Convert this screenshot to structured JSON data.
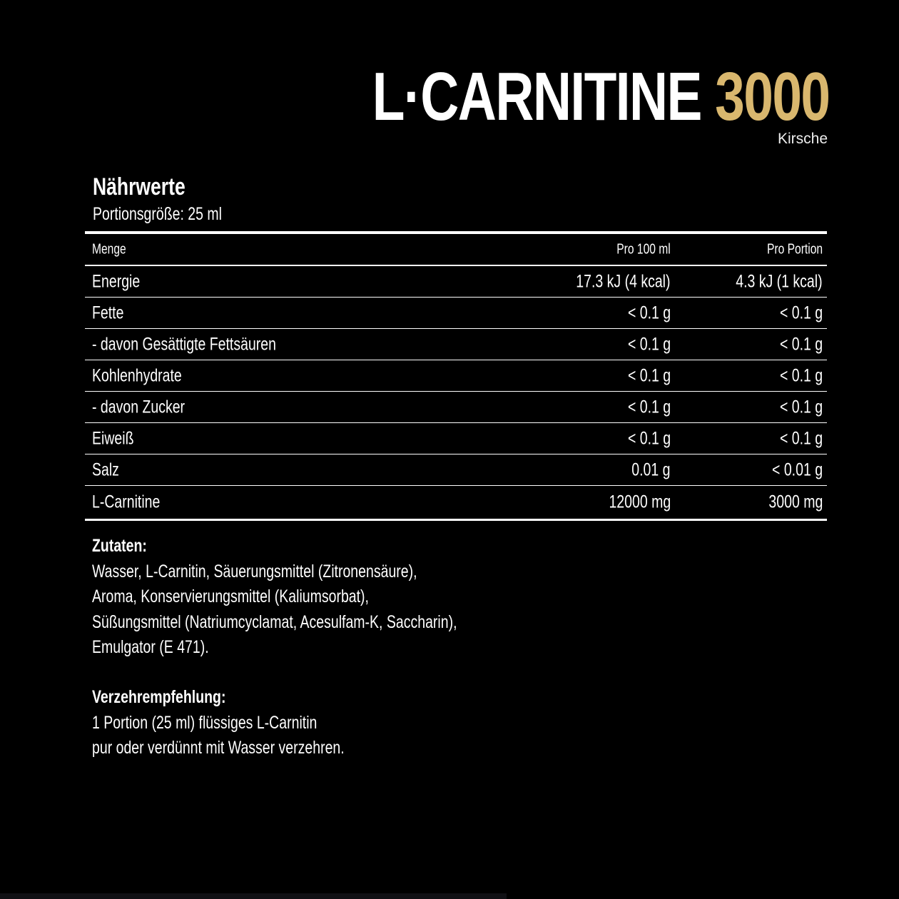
{
  "header": {
    "product": "L·CARNITINE",
    "strength": "3000",
    "flavor": "Kirsche",
    "accent_color": "#d9b76e"
  },
  "nutrition": {
    "title": "Nährwerte",
    "serving": "Portionsgröße: 25 ml",
    "columns": [
      "Menge",
      "Pro 100 ml",
      "Pro Portion"
    ],
    "rows": [
      [
        "Energie",
        "17.3 kJ (4 kcal)",
        "4.3 kJ (1 kcal)"
      ],
      [
        "Fette",
        "< 0.1 g",
        "< 0.1 g"
      ],
      [
        "- davon Gesättigte Fettsäuren",
        "< 0.1 g",
        "< 0.1 g"
      ],
      [
        "Kohlenhydrate",
        "< 0.1 g",
        "< 0.1 g"
      ],
      [
        "- davon Zucker",
        "< 0.1 g",
        "< 0.1 g"
      ],
      [
        "Eiweiß",
        "< 0.1 g",
        "< 0.1 g"
      ],
      [
        "Salz",
        "0.01 g",
        "< 0.01 g"
      ],
      [
        "L-Carnitine",
        "12000 mg",
        "3000 mg"
      ]
    ]
  },
  "ingredients": {
    "title": "Zutaten:",
    "lines": [
      "Wasser, L-Carnitin, Säuerungsmittel (Zitronensäure),",
      "Aroma, Konservierungsmittel (Kaliumsorbat),",
      "Süßungsmittel (Natriumcyclamat, Acesulfam-K, Saccharin),",
      "Emulgator (E 471)."
    ]
  },
  "recommendation": {
    "title": "Verzehrempfehlung:",
    "lines": [
      "1 Portion (25 ml) flüssiges L-Carnitin",
      "pur oder verdünnt mit Wasser verzehren."
    ]
  }
}
